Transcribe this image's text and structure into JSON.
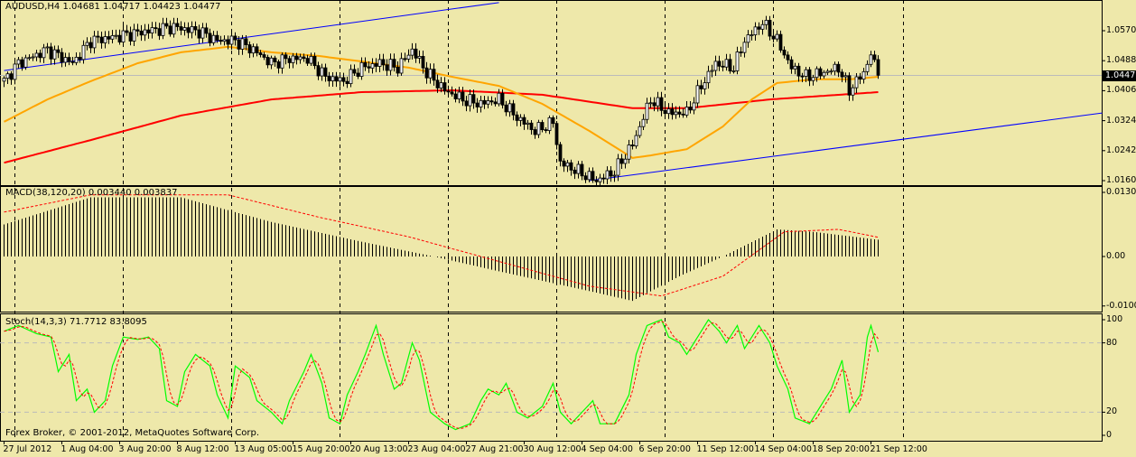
{
  "header": {
    "symbol_info": "AUDUSD,H4  1.04681 1.04717 1.04423 1.04477"
  },
  "macd_label": "MACD(38,120,20) 0.003440 0.003837",
  "stoch_label": "Stoch(14,3,3) 71.7712 83.8095",
  "copyright": "Forex Broker, © 2001-2012, MetaQuotes Software Corp.",
  "current_price": "1.04477",
  "colors": {
    "background": "#EEE8AA",
    "ma_fast": "#FFA500",
    "ma_slow": "#FF0000",
    "trendline": "#0000FF",
    "stoch_main": "#00FF00",
    "stoch_signal": "#FF0000",
    "macd_signal": "#FF0000"
  },
  "chart_data": [
    {
      "type": "candlestick",
      "title": "AUDUSD,H4",
      "x_unit": "bar index (H4)",
      "xlim": [
        0,
        304
      ],
      "ylim": [
        1.016,
        1.0622
      ],
      "y_ticks": [
        "1.05700",
        "1.04880",
        "1.04060",
        "1.03240",
        "1.02420",
        "1.01600"
      ],
      "y_tick_values": [
        1.057,
        1.0488,
        1.0406,
        1.0324,
        1.0242,
        1.016
      ],
      "x_tick_labels": [
        "27 Jul 2012",
        "1 Aug 04:00",
        "3 Aug 20:00",
        "8 Aug 12:00",
        "13 Aug 05:00",
        "15 Aug 20:00",
        "20 Aug 13:00",
        "23 Aug 04:00",
        "27 Aug 21:00",
        "30 Aug 12:00",
        "4 Sep 04:00",
        "6 Sep 20:00",
        "11 Sep 12:00",
        "14 Sep 04:00",
        "18 Sep 20:00",
        "21 Sep 12:00"
      ],
      "x_tick_bars": [
        0,
        16,
        32,
        48,
        64,
        80,
        96,
        112,
        128,
        144,
        160,
        176,
        192,
        208,
        224,
        240
      ],
      "period_separators": [
        3,
        33,
        63,
        93,
        123,
        153,
        183,
        213,
        249
      ],
      "close": [
        [
          0,
          1.0432
        ],
        [
          4,
          1.0481
        ],
        [
          12,
          1.0518
        ],
        [
          19,
          1.0481
        ],
        [
          24,
          1.0543
        ],
        [
          32,
          1.0555
        ],
        [
          39,
          1.0568
        ],
        [
          47,
          1.058
        ],
        [
          54,
          1.0568
        ],
        [
          59,
          1.0543
        ],
        [
          64,
          1.0543
        ],
        [
          69,
          1.0518
        ],
        [
          74,
          1.0481
        ],
        [
          79,
          1.0494
        ],
        [
          84,
          1.0494
        ],
        [
          89,
          1.0444
        ],
        [
          94,
          1.0432
        ],
        [
          99,
          1.0469
        ],
        [
          104,
          1.0481
        ],
        [
          109,
          1.0469
        ],
        [
          113,
          1.0518
        ],
        [
          117,
          1.0456
        ],
        [
          122,
          1.0407
        ],
        [
          127,
          1.0382
        ],
        [
          132,
          1.037
        ],
        [
          137,
          1.0382
        ],
        [
          142,
          1.0333
        ],
        [
          147,
          1.0296
        ],
        [
          152,
          1.032
        ],
        [
          154,
          1.0209
        ],
        [
          159,
          1.0185
        ],
        [
          164,
          1.016
        ],
        [
          169,
          1.0185
        ],
        [
          174,
          1.0259
        ],
        [
          179,
          1.0382
        ],
        [
          184,
          1.0345
        ],
        [
          189,
          1.0345
        ],
        [
          193,
          1.0419
        ],
        [
          197,
          1.0481
        ],
        [
          202,
          1.0469
        ],
        [
          205,
          1.0543
        ],
        [
          210,
          1.0592
        ],
        [
          214,
          1.0543
        ],
        [
          218,
          1.0469
        ],
        [
          222,
          1.0444
        ],
        [
          227,
          1.0456
        ],
        [
          231,
          1.0469
        ],
        [
          234,
          1.0407
        ],
        [
          238,
          1.0456
        ],
        [
          240,
          1.0506
        ],
        [
          242,
          1.0448
        ]
      ],
      "ma_fast": [
        [
          0,
          1.0321
        ],
        [
          12,
          1.0382
        ],
        [
          24,
          1.0432
        ],
        [
          37,
          1.0481
        ],
        [
          49,
          1.0511
        ],
        [
          62,
          1.0526
        ],
        [
          74,
          1.0511
        ],
        [
          87,
          1.0501
        ],
        [
          99,
          1.0486
        ],
        [
          112,
          1.0469
        ],
        [
          124,
          1.0444
        ],
        [
          137,
          1.0419
        ],
        [
          149,
          1.037
        ],
        [
          162,
          1.0296
        ],
        [
          174,
          1.0222
        ],
        [
          179,
          1.0229
        ],
        [
          189,
          1.0246
        ],
        [
          199,
          1.0308
        ],
        [
          207,
          1.0382
        ],
        [
          214,
          1.0427
        ],
        [
          224,
          1.0437
        ],
        [
          234,
          1.0437
        ],
        [
          242,
          1.0444
        ]
      ],
      "ma_slow": [
        [
          0,
          1.0209
        ],
        [
          24,
          1.0271
        ],
        [
          49,
          1.0338
        ],
        [
          74,
          1.0382
        ],
        [
          99,
          1.0402
        ],
        [
          124,
          1.0407
        ],
        [
          149,
          1.0395
        ],
        [
          174,
          1.0358
        ],
        [
          189,
          1.0358
        ],
        [
          212,
          1.0382
        ],
        [
          242,
          1.0402
        ]
      ],
      "trendlines": [
        [
          [
            0,
            1.0461
          ],
          [
            137,
            1.0647
          ]
        ],
        [
          [
            162,
            1.016
          ],
          [
            304,
            1.0345
          ]
        ]
      ],
      "current_price": 1.04477
    },
    {
      "type": "bar",
      "title": "MACD(38,120,20)",
      "ylim": [
        -0.01003,
        0.01303
      ],
      "y_ticks": [
        "0.01303",
        "0.00",
        "-0.01003"
      ],
      "y_tick_values": [
        0.01303,
        0,
        -0.01003
      ],
      "histogram": [
        [
          0,
          0.0065
        ],
        [
          24,
          0.012
        ],
        [
          49,
          0.012
        ],
        [
          74,
          0.007
        ],
        [
          99,
          0.003
        ],
        [
          119,
          0
        ],
        [
          137,
          -0.003
        ],
        [
          162,
          -0.007
        ],
        [
          174,
          -0.009
        ],
        [
          187,
          -0.004
        ],
        [
          199,
          0
        ],
        [
          214,
          0.0055
        ],
        [
          224,
          0.005
        ],
        [
          242,
          0.0034
        ]
      ],
      "signal": [
        [
          0,
          0.009
        ],
        [
          24,
          0.0125
        ],
        [
          62,
          0.0125
        ],
        [
          87,
          0.008
        ],
        [
          112,
          0.004
        ],
        [
          137,
          -0.001
        ],
        [
          162,
          -0.006
        ],
        [
          182,
          -0.008
        ],
        [
          199,
          -0.004
        ],
        [
          216,
          0.005
        ],
        [
          231,
          0.0055
        ],
        [
          242,
          0.0039
        ]
      ]
    },
    {
      "type": "line",
      "title": "Stoch(14,3,3)",
      "ylim": [
        0,
        100
      ],
      "y_ticks": [
        "100",
        "80",
        "20",
        "0"
      ],
      "y_tick_values": [
        100,
        80,
        20,
        0
      ],
      "levels": [
        80,
        20
      ],
      "main": [
        [
          0,
          90
        ],
        [
          4,
          95
        ],
        [
          9,
          88
        ],
        [
          13,
          85
        ],
        [
          15,
          55
        ],
        [
          18,
          70
        ],
        [
          20,
          30
        ],
        [
          23,
          40
        ],
        [
          25,
          20
        ],
        [
          28,
          30
        ],
        [
          30,
          60
        ],
        [
          33,
          85
        ],
        [
          37,
          83
        ],
        [
          40,
          85
        ],
        [
          43,
          75
        ],
        [
          45,
          30
        ],
        [
          48,
          25
        ],
        [
          50,
          55
        ],
        [
          53,
          70
        ],
        [
          57,
          60
        ],
        [
          59,
          35
        ],
        [
          62,
          15
        ],
        [
          64,
          60
        ],
        [
          68,
          50
        ],
        [
          70,
          30
        ],
        [
          74,
          20
        ],
        [
          77,
          10
        ],
        [
          79,
          30
        ],
        [
          83,
          55
        ],
        [
          85,
          70
        ],
        [
          88,
          45
        ],
        [
          90,
          15
        ],
        [
          93,
          10
        ],
        [
          95,
          35
        ],
        [
          98,
          55
        ],
        [
          100,
          70
        ],
        [
          103,
          95
        ],
        [
          105,
          70
        ],
        [
          108,
          40
        ],
        [
          110,
          45
        ],
        [
          113,
          80
        ],
        [
          115,
          65
        ],
        [
          118,
          20
        ],
        [
          122,
          10
        ],
        [
          125,
          5
        ],
        [
          129,
          10
        ],
        [
          132,
          30
        ],
        [
          134,
          40
        ],
        [
          137,
          35
        ],
        [
          139,
          45
        ],
        [
          142,
          20
        ],
        [
          145,
          15
        ],
        [
          149,
          25
        ],
        [
          152,
          45
        ],
        [
          154,
          20
        ],
        [
          157,
          10
        ],
        [
          160,
          20
        ],
        [
          163,
          30
        ],
        [
          165,
          10
        ],
        [
          169,
          10
        ],
        [
          173,
          35
        ],
        [
          175,
          70
        ],
        [
          178,
          95
        ],
        [
          182,
          100
        ],
        [
          184,
          85
        ],
        [
          187,
          80
        ],
        [
          189,
          70
        ],
        [
          192,
          85
        ],
        [
          195,
          100
        ],
        [
          198,
          90
        ],
        [
          200,
          80
        ],
        [
          203,
          95
        ],
        [
          205,
          75
        ],
        [
          209,
          95
        ],
        [
          212,
          80
        ],
        [
          214,
          60
        ],
        [
          217,
          40
        ],
        [
          219,
          15
        ],
        [
          223,
          10
        ],
        [
          225,
          20
        ],
        [
          229,
          40
        ],
        [
          232,
          65
        ],
        [
          234,
          20
        ],
        [
          237,
          35
        ],
        [
          239,
          85
        ],
        [
          240,
          95
        ],
        [
          242,
          72
        ]
      ]
    }
  ]
}
